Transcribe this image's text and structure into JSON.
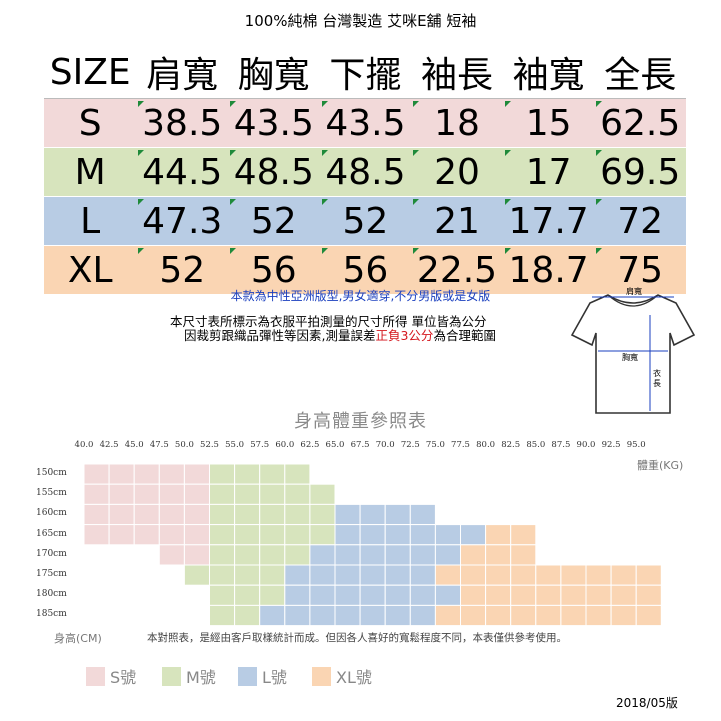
{
  "header": {
    "title": "100%純棉 台灣製造 艾咪E舖 短袖"
  },
  "size_table": {
    "columns": [
      "SIZE",
      "肩寬",
      "胸寬",
      "下擺",
      "袖長",
      "袖寬",
      "全長"
    ],
    "rows": [
      {
        "size": "S",
        "values": [
          "38.5",
          "43.5",
          "43.5",
          "18",
          "15",
          "62.5"
        ],
        "color": "#f2d9d9"
      },
      {
        "size": "M",
        "values": [
          "44.5",
          "48.5",
          "48.5",
          "20",
          "17",
          "69.5"
        ],
        "color": "#d7e4bd"
      },
      {
        "size": "L",
        "values": [
          "47.3",
          "52",
          "52",
          "21",
          "17.7",
          "72"
        ],
        "color": "#b8cce4"
      },
      {
        "size": "XL",
        "values": [
          "52",
          "56",
          "56",
          "22.5",
          "18.7",
          "75"
        ],
        "color": "#fad5b3"
      }
    ]
  },
  "notes": {
    "unisex": "本款為中性亞洲版型,男女適穿,不分男版或是女版",
    "line1": "本尺寸表所標示為衣服平拍測量的尺寸所得 單位皆為公分",
    "line2_pre": "因裁剪跟織品彈性等因素,測量誤差",
    "line2_red": "正負3公分",
    "line2_post": "為合理範圍"
  },
  "shirt_diagram": {
    "shoulder_label": "肩寬",
    "chest_label": "胸寬",
    "length_label": "衣長"
  },
  "chart": {
    "title": "身高體重參照表",
    "weights": [
      "40.0",
      "42.5",
      "45.0",
      "47.5",
      "50.0",
      "52.5",
      "55.0",
      "57.5",
      "60.0",
      "62.5",
      "65.0",
      "67.5",
      "70.0",
      "72.5",
      "75.0",
      "77.5",
      "80.0",
      "82.5",
      "85.0",
      "87.5",
      "90.0",
      "92.5",
      "95.0"
    ],
    "weight_unit": "體重(KG)",
    "heights": [
      "150cm",
      "155cm",
      "160cm",
      "165cm",
      "170cm",
      "175cm",
      "180cm",
      "185cm"
    ],
    "height_unit": "身高(CM)",
    "note": "本對照表，是經由客戶取樣統計而成。但因各人喜好的寬鬆程度不同，本表僅供參考使用。",
    "legend": [
      {
        "label": "S號",
        "color": "#f2d9d9"
      },
      {
        "label": "M號",
        "color": "#d7e4bd"
      },
      {
        "label": "L號",
        "color": "#b8cce4"
      },
      {
        "label": "XL號",
        "color": "#fad5b3"
      }
    ]
  },
  "footer": {
    "date": "2018/05版"
  }
}
